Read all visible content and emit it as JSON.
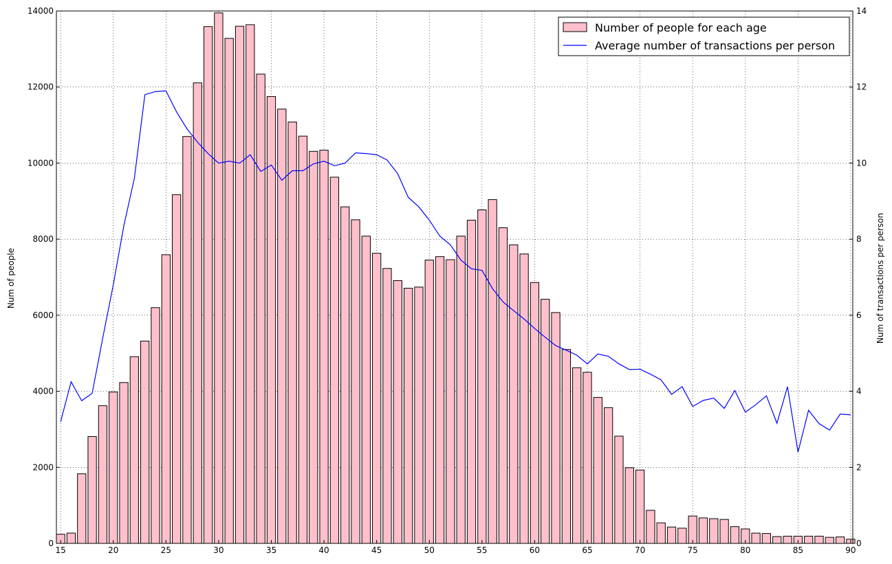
{
  "chart_data": {
    "type": "bar",
    "x": [
      15,
      16,
      17,
      18,
      19,
      20,
      21,
      22,
      23,
      24,
      25,
      26,
      27,
      28,
      29,
      30,
      31,
      32,
      33,
      34,
      35,
      36,
      37,
      38,
      39,
      40,
      41,
      42,
      43,
      44,
      45,
      46,
      47,
      48,
      49,
      50,
      51,
      52,
      53,
      54,
      55,
      56,
      57,
      58,
      59,
      60,
      61,
      62,
      63,
      64,
      65,
      66,
      67,
      68,
      69,
      70,
      71,
      72,
      73,
      74,
      75,
      76,
      77,
      78,
      79,
      80,
      81,
      82,
      83,
      84,
      85,
      86,
      87,
      88,
      89,
      90
    ],
    "xlim": [
      14.6,
      90.2
    ],
    "xticks": [
      15,
      20,
      25,
      30,
      35,
      40,
      45,
      50,
      55,
      60,
      65,
      70,
      75,
      80,
      85,
      90
    ],
    "left_axis": {
      "label": "Num of people",
      "ylim": [
        0,
        14000
      ],
      "ticks": [
        0,
        2000,
        4000,
        6000,
        8000,
        10000,
        12000,
        14000
      ]
    },
    "right_axis": {
      "label": "Num of transactions per person",
      "ylim": [
        0,
        14
      ],
      "ticks": [
        0,
        2,
        4,
        6,
        8,
        10,
        12,
        14
      ]
    },
    "grid": true,
    "legend_position": "top-right",
    "series": [
      {
        "name": "Number of people for each age",
        "kind": "bar",
        "axis": "left",
        "color": "#ffc0cb",
        "edge_color": "#000000",
        "values": [
          240,
          270,
          1830,
          2810,
          3620,
          3980,
          4230,
          4910,
          5320,
          6200,
          7590,
          9170,
          10700,
          12110,
          13590,
          13950,
          13280,
          13600,
          13640,
          12340,
          11750,
          11420,
          11080,
          10710,
          10310,
          10340,
          9630,
          8850,
          8510,
          8080,
          7630,
          7230,
          6910,
          6710,
          6740,
          7450,
          7540,
          7460,
          8080,
          8500,
          8770,
          9040,
          8300,
          7850,
          7610,
          6860,
          6420,
          6070,
          5100,
          4620,
          4500,
          3840,
          3570,
          2820,
          1990,
          1930,
          870,
          540,
          430,
          400,
          720,
          670,
          650,
          630,
          440,
          380,
          270,
          260,
          180,
          190,
          190,
          190,
          190,
          160,
          170,
          110
        ]
      },
      {
        "name": "Average number of transactions per person",
        "kind": "line",
        "axis": "right",
        "color": "#0000ff",
        "values": [
          3.2,
          4.25,
          3.75,
          3.95,
          5.4,
          6.8,
          8.35,
          9.6,
          11.8,
          11.88,
          11.9,
          11.35,
          10.9,
          10.55,
          10.25,
          10.0,
          10.05,
          10.0,
          10.22,
          9.78,
          9.95,
          9.55,
          9.8,
          9.8,
          9.98,
          10.05,
          9.93,
          10.0,
          10.27,
          10.25,
          10.22,
          10.08,
          9.72,
          9.1,
          8.85,
          8.5,
          8.08,
          7.85,
          7.45,
          7.22,
          7.18,
          6.7,
          6.35,
          6.12,
          5.9,
          5.65,
          5.42,
          5.2,
          5.08,
          4.95,
          4.72,
          4.98,
          4.92,
          4.72,
          4.57,
          4.58,
          4.45,
          4.3,
          3.92,
          4.12,
          3.6,
          3.76,
          3.82,
          3.55,
          4.02,
          3.45,
          3.65,
          3.88,
          3.16,
          4.12,
          2.4,
          3.5,
          3.15,
          2.98,
          3.4,
          3.38
        ]
      }
    ]
  }
}
